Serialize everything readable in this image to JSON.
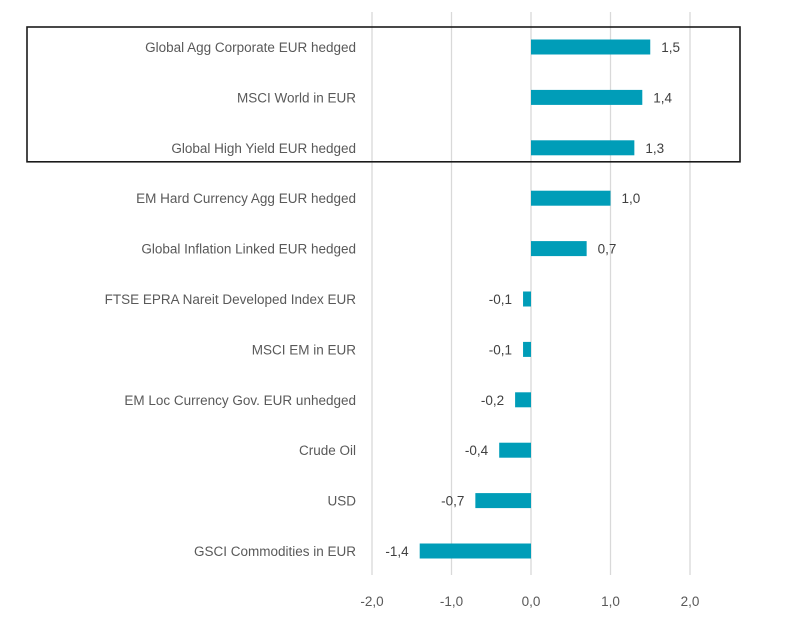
{
  "chart_data": {
    "type": "bar",
    "orientation": "horizontal",
    "title": "",
    "xlabel": "",
    "ylabel": "",
    "categories": [
      "Global Agg Corporate EUR hedged",
      "MSCI World in EUR",
      "Global High Yield EUR hedged",
      "EM Hard Currency Agg EUR hedged",
      "Global Inflation Linked EUR hedged",
      "FTSE EPRA Nareit Developed Index EUR",
      "MSCI EM in EUR",
      "EM Loc Currency Gov. EUR unhedged",
      "Crude Oil",
      "USD",
      "GSCI Commodities in EUR"
    ],
    "values": [
      1.5,
      1.4,
      1.3,
      1.0,
      0.7,
      -0.1,
      -0.1,
      -0.2,
      -0.4,
      -0.7,
      -1.4
    ],
    "value_labels": [
      "1,5",
      "1,4",
      "1,3",
      "1,0",
      "0,7",
      "-0,1",
      "-0,1",
      "-0,2",
      "-0,4",
      "-0,7",
      "-1,4"
    ],
    "xlim": [
      -2.0,
      2.0
    ],
    "xticks": [
      -2.0,
      -1.0,
      0.0,
      1.0,
      2.0
    ],
    "xtick_labels": [
      "-2,0",
      "-1,0",
      "0,0",
      "1,0",
      "2,0"
    ],
    "grid": "vertical",
    "legend": "none",
    "bar_color": "#009DB8",
    "highlight": {
      "type": "box",
      "categories": [
        "Global Agg Corporate EUR hedged",
        "MSCI World in EUR",
        "Global High Yield EUR hedged"
      ]
    }
  }
}
